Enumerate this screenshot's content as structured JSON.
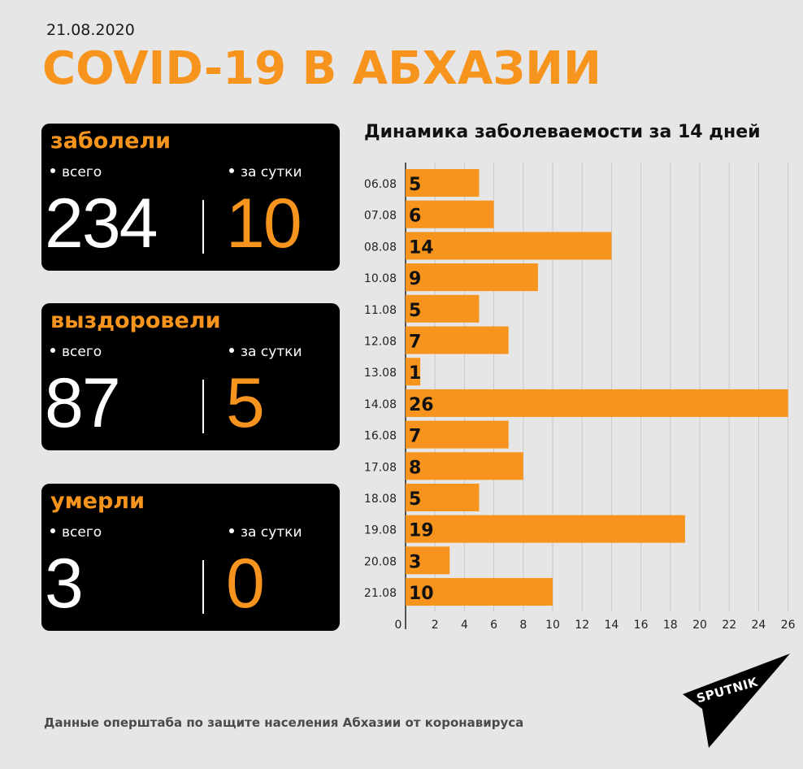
{
  "header": {
    "date": "21.08.2020",
    "title": "COVID-19 В АБХАЗИИ"
  },
  "cards": [
    {
      "label": "заболели",
      "total_label": "всего",
      "daily_label": "за сутки",
      "total": "234",
      "daily": "10"
    },
    {
      "label": "выздоровели",
      "total_label": "всего",
      "daily_label": "за сутки",
      "total": "87",
      "daily": "5"
    },
    {
      "label": "умерли",
      "total_label": "всего",
      "daily_label": "за сутки",
      "total": "3",
      "daily": "0"
    }
  ],
  "chart_title": "Динамика заболеваемости за 14 дней",
  "chart_data": {
    "type": "bar",
    "orientation": "horizontal",
    "title": "Динамика заболеваемости за 14 дней",
    "categories": [
      "06.08",
      "07.08",
      "08.08",
      "10.08",
      "11.08",
      "12.08",
      "13.08",
      "14.08",
      "16.08",
      "17.08",
      "18.08",
      "19.08",
      "20.08",
      "21.08"
    ],
    "values": [
      5,
      6,
      14,
      9,
      5,
      7,
      1,
      26,
      7,
      8,
      5,
      19,
      3,
      10
    ],
    "x_ticks": [
      0,
      2,
      4,
      6,
      8,
      10,
      12,
      14,
      16,
      18,
      20,
      22,
      24,
      26
    ],
    "xlim": [
      0,
      26
    ],
    "grid": true,
    "bar_color": "#f7941d"
  },
  "footer": "Данные оперштаба по защите населения Абхазии от коронавируса",
  "logo": {
    "text": "SPUTNIK",
    "icon": "sputnik-logo-icon"
  },
  "colors": {
    "accent": "#f7941d",
    "background": "#e6e6e6",
    "card": "#000000"
  }
}
